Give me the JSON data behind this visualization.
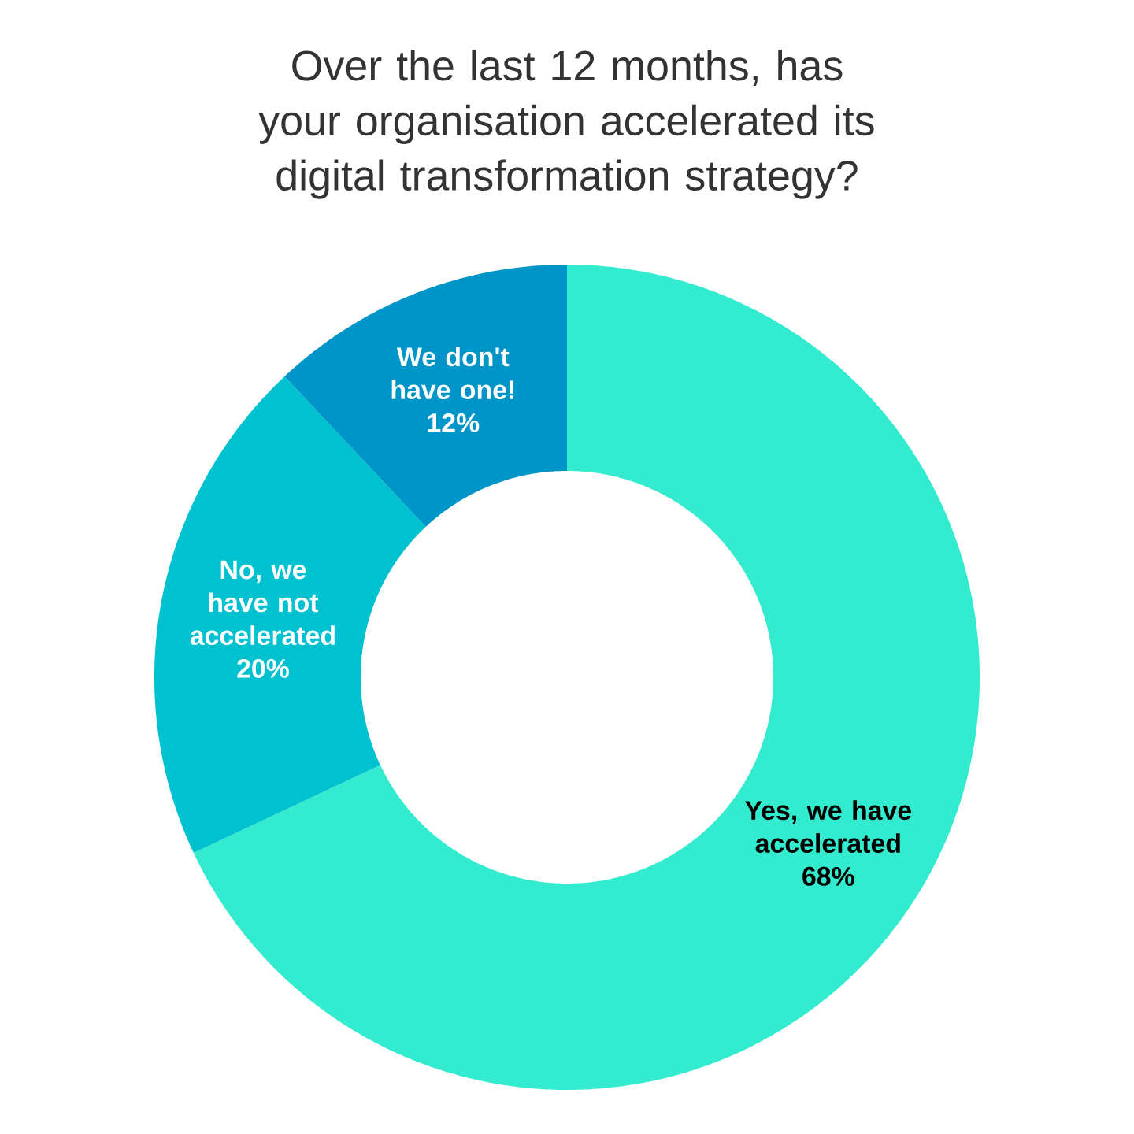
{
  "chart_data": {
    "type": "donut",
    "title": "Over the last 12 months, has your organisation accelerated its digital transformation strategy?",
    "categories": [
      "Yes, we have accelerated",
      "No, we have not accelerated",
      "We don't have one!"
    ],
    "values": [
      68,
      20,
      12
    ],
    "value_labels": [
      "68%",
      "20%",
      "12%"
    ],
    "colors": [
      "#33ebcf",
      "#00c1cf",
      "#0095c8"
    ]
  }
}
